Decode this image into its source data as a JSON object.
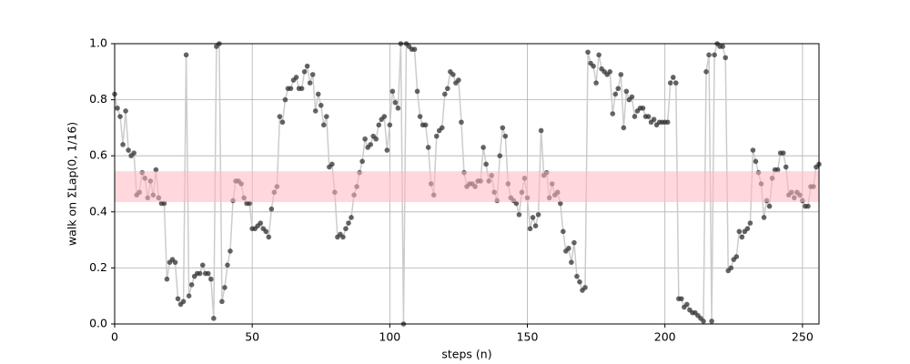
{
  "chart_data": {
    "type": "line",
    "xlabel": "steps (n)",
    "ylabel": "walk on ΣLap(0, 1/16)",
    "x": [
      0,
      1,
      2,
      3,
      4,
      5,
      6,
      7,
      8,
      9,
      10,
      11,
      12,
      13,
      14,
      15,
      16,
      17,
      18,
      19,
      20,
      21,
      22,
      23,
      24,
      25,
      26,
      27,
      28,
      29,
      30,
      31,
      32,
      33,
      34,
      35,
      36,
      37,
      38,
      39,
      40,
      41,
      42,
      43,
      44,
      45,
      46,
      47,
      48,
      49,
      50,
      51,
      52,
      53,
      54,
      55,
      56,
      57,
      58,
      59,
      60,
      61,
      62,
      63,
      64,
      65,
      66,
      67,
      68,
      69,
      70,
      71,
      72,
      73,
      74,
      75,
      76,
      77,
      78,
      79,
      80,
      81,
      82,
      83,
      84,
      85,
      86,
      87,
      88,
      89,
      90,
      91,
      92,
      93,
      94,
      95,
      96,
      97,
      98,
      99,
      100,
      101,
      102,
      103,
      104,
      105,
      106,
      107,
      108,
      109,
      110,
      111,
      112,
      113,
      114,
      115,
      116,
      117,
      118,
      119,
      120,
      121,
      122,
      123,
      124,
      125,
      126,
      127,
      128,
      129,
      130,
      131,
      132,
      133,
      134,
      135,
      136,
      137,
      138,
      139,
      140,
      141,
      142,
      143,
      144,
      145,
      146,
      147,
      148,
      149,
      150,
      151,
      152,
      153,
      154,
      155,
      156,
      157,
      158,
      159,
      160,
      161,
      162,
      163,
      164,
      165,
      166,
      167,
      168,
      169,
      170,
      171,
      172,
      173,
      174,
      175,
      176,
      177,
      178,
      179,
      180,
      181,
      182,
      183,
      184,
      185,
      186,
      187,
      188,
      189,
      190,
      191,
      192,
      193,
      194,
      195,
      196,
      197,
      198,
      199,
      200,
      201,
      202,
      203,
      204,
      205,
      206,
      207,
      208,
      209,
      210,
      211,
      212,
      213,
      214,
      215,
      216,
      217,
      218,
      219,
      220,
      221,
      222,
      223,
      224,
      225,
      226,
      227,
      228,
      229,
      230,
      231,
      232,
      233,
      234,
      235,
      236,
      237,
      238,
      239,
      240,
      241,
      242,
      243,
      244,
      245,
      246,
      247,
      248,
      249,
      250,
      251,
      252,
      253,
      254,
      255,
      256
    ],
    "series": [
      {
        "color": "#333333",
        "line_color": "#cccccc",
        "values": [
          0.82,
          0.77,
          0.74,
          0.64,
          0.76,
          0.62,
          0.6,
          0.61,
          0.46,
          0.47,
          0.54,
          0.52,
          0.45,
          0.51,
          0.46,
          0.55,
          0.45,
          0.43,
          0.43,
          0.16,
          0.22,
          0.23,
          0.22,
          0.09,
          0.07,
          0.08,
          0.96,
          0.1,
          0.14,
          0.17,
          0.18,
          0.18,
          0.21,
          0.18,
          0.18,
          0.16,
          0.02,
          0.99,
          1.0,
          0.08,
          0.13,
          0.21,
          0.26,
          0.44,
          0.51,
          0.51,
          0.5,
          0.45,
          0.43,
          0.43,
          0.34,
          0.34,
          0.35,
          0.36,
          0.34,
          0.33,
          0.31,
          0.41,
          0.47,
          0.49,
          0.74,
          0.72,
          0.8,
          0.84,
          0.84,
          0.87,
          0.88,
          0.84,
          0.84,
          0.9,
          0.92,
          0.86,
          0.89,
          0.76,
          0.82,
          0.78,
          0.71,
          0.74,
          0.56,
          0.57,
          0.47,
          0.31,
          0.32,
          0.31,
          0.34,
          0.36,
          0.38,
          0.46,
          0.49,
          0.54,
          0.58,
          0.66,
          0.63,
          0.64,
          0.67,
          0.66,
          0.71,
          0.73,
          0.74,
          0.62,
          0.71,
          0.83,
          0.79,
          0.77,
          1.0,
          0.0,
          1.0,
          0.99,
          0.98,
          0.98,
          0.83,
          0.74,
          0.71,
          0.71,
          0.63,
          0.5,
          0.46,
          0.67,
          0.69,
          0.7,
          0.82,
          0.84,
          0.9,
          0.89,
          0.86,
          0.87,
          0.72,
          0.54,
          0.49,
          0.5,
          0.5,
          0.49,
          0.51,
          0.51,
          0.63,
          0.57,
          0.51,
          0.53,
          0.47,
          0.44,
          0.6,
          0.7,
          0.67,
          0.5,
          0.45,
          0.44,
          0.43,
          0.39,
          0.47,
          0.52,
          0.45,
          0.34,
          0.38,
          0.35,
          0.39,
          0.69,
          0.53,
          0.54,
          0.45,
          0.5,
          0.46,
          0.47,
          0.43,
          0.33,
          0.26,
          0.27,
          0.22,
          0.29,
          0.17,
          0.15,
          0.12,
          0.13,
          0.97,
          0.93,
          0.92,
          0.86,
          0.96,
          0.91,
          0.9,
          0.89,
          0.9,
          0.75,
          0.82,
          0.84,
          0.89,
          0.7,
          0.83,
          0.8,
          0.81,
          0.74,
          0.76,
          0.77,
          0.77,
          0.74,
          0.74,
          0.72,
          0.73,
          0.71,
          0.72,
          0.72,
          0.72,
          0.72,
          0.86,
          0.88,
          0.86,
          0.09,
          0.09,
          0.06,
          0.07,
          0.05,
          0.04,
          0.04,
          0.03,
          0.02,
          0.01,
          0.9,
          0.96,
          0.01,
          0.96,
          1.0,
          0.99,
          0.99,
          0.95,
          0.19,
          0.2,
          0.23,
          0.24,
          0.33,
          0.31,
          0.33,
          0.34,
          0.36,
          0.62,
          0.58,
          0.54,
          0.5,
          0.38,
          0.44,
          0.42,
          0.52,
          0.55,
          0.55,
          0.61,
          0.61,
          0.56,
          0.46,
          0.47,
          0.45,
          0.47,
          0.46,
          0.44,
          0.42,
          0.42,
          0.49,
          0.49,
          0.56,
          0.57
        ]
      }
    ],
    "band": [
      0.435,
      0.545
    ],
    "band_color": "#ffb6c1",
    "xlim": [
      0,
      256
    ],
    "xticks": [
      0,
      50,
      100,
      150,
      200,
      250
    ],
    "ylim": [
      0,
      1
    ],
    "yticks": [
      {
        "value": 0,
        "label": "0.0"
      },
      {
        "value": 0.2,
        "label": "0.2"
      },
      {
        "value": 0.4,
        "label": "0.4"
      },
      {
        "value": 0.6,
        "label": "0.6"
      },
      {
        "value": 0.8,
        "label": "0.8"
      },
      {
        "value": 1,
        "label": "1.0"
      }
    ],
    "grid": true
  }
}
